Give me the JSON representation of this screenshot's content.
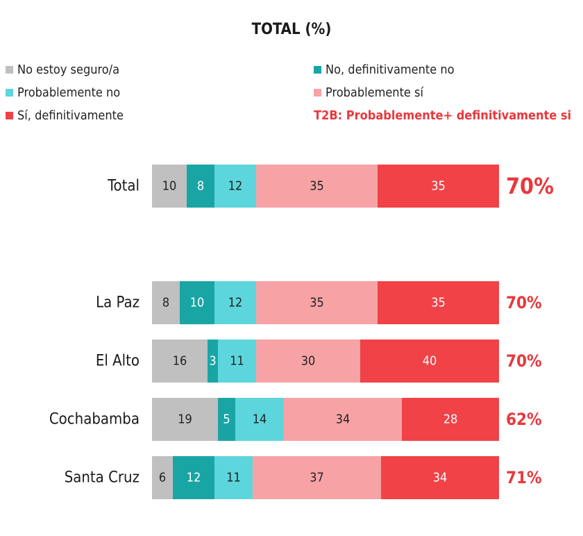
{
  "chart_data": {
    "type": "bar",
    "orientation": "horizontal",
    "stacked": true,
    "title": "TOTAL (%)",
    "categories": [
      "Total",
      "La Paz",
      "El Alto",
      "Cochabamba",
      "Santa Cruz"
    ],
    "series": [
      {
        "name": "No estoy seguro/a",
        "color": "#c0c0c0",
        "label_color": "#222222",
        "values": [
          10,
          8,
          16,
          19,
          6
        ]
      },
      {
        "name": "No, definitivamente no",
        "color": "#1aa5a5",
        "label_color": "#ffffff",
        "values": [
          8,
          10,
          3,
          5,
          12
        ]
      },
      {
        "name": "Probablemente no",
        "color": "#5cd6dc",
        "label_color": "#222222",
        "values": [
          12,
          12,
          11,
          14,
          11
        ]
      },
      {
        "name": "Probablemente sí",
        "color": "#f7a3a6",
        "label_color": "#222222",
        "values": [
          35,
          35,
          30,
          34,
          37
        ]
      },
      {
        "name": "Sí, definitivamente",
        "color": "#f04247",
        "label_color": "#ffffff",
        "values": [
          35,
          35,
          40,
          28,
          34
        ]
      }
    ],
    "t2b": {
      "label": "T2B: Probablemente+ definitivamente si",
      "values": [
        "70%",
        "70%",
        "70%",
        "62%",
        "71%"
      ],
      "color": "#e8383d"
    },
    "legend_placement": "top",
    "grid": false
  }
}
